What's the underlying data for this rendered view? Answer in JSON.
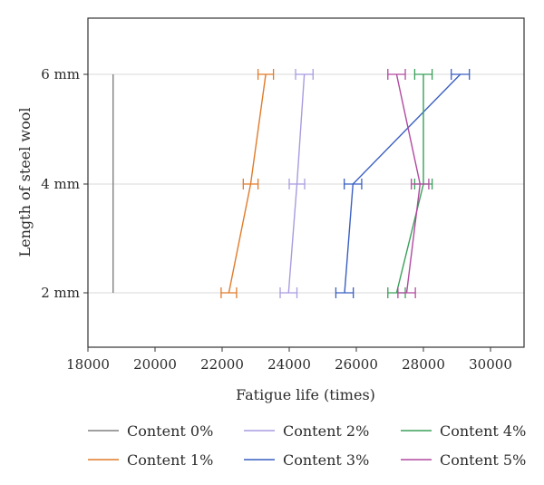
{
  "chart_data": {
    "type": "line",
    "orientation": "horizontal",
    "title": "",
    "xlabel": "Fatigue life (times)",
    "ylabel": "Length of steel wool",
    "xlim": [
      18000,
      31000
    ],
    "xticks": [
      18000,
      20000,
      22000,
      24000,
      26000,
      28000,
      30000
    ],
    "xtick_labels": [
      "18000",
      "20000",
      "22000",
      "24000",
      "26000",
      "28000",
      "30000"
    ],
    "categories": [
      "2 mm",
      "4 mm",
      "6 mm"
    ],
    "grid": true,
    "legend_position": "bottom",
    "series": [
      {
        "name": "Content 0%",
        "color": "#808080",
        "values": [
          18750,
          18750,
          18750
        ],
        "errors": [
          0,
          0,
          0
        ]
      },
      {
        "name": "Content 1%",
        "color": "#e07b2a",
        "values": [
          22200,
          22850,
          23300
        ],
        "errors": [
          230,
          220,
          230
        ]
      },
      {
        "name": "Content 2%",
        "color": "#a99be0",
        "values": [
          23980,
          24230,
          24450
        ],
        "errors": [
          250,
          230,
          260
        ]
      },
      {
        "name": "Content 3%",
        "color": "#3a5fc2",
        "values": [
          25650,
          25900,
          29100
        ],
        "errors": [
          260,
          260,
          270
        ]
      },
      {
        "name": "Content 4%",
        "color": "#3aa05a",
        "values": [
          27200,
          28000,
          28000
        ],
        "errors": [
          260,
          260,
          260
        ]
      },
      {
        "name": "Content 5%",
        "color": "#b04aa0",
        "values": [
          27500,
          27900,
          27200
        ],
        "errors": [
          260,
          260,
          260
        ]
      }
    ]
  }
}
